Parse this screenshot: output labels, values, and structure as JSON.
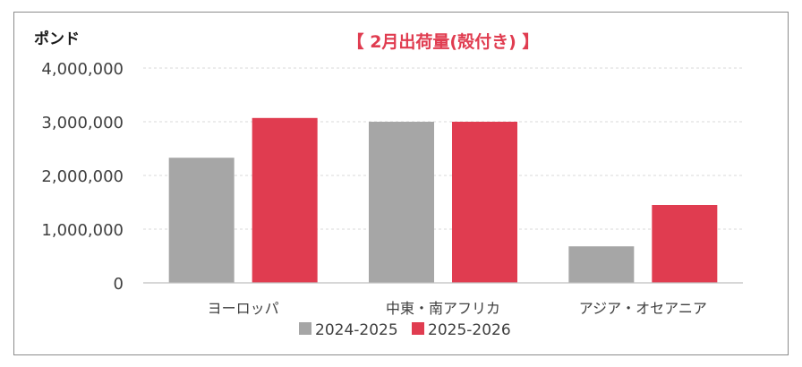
{
  "chart_data": {
    "type": "bar",
    "title": "【 2月出荷量(殻付き) 】",
    "ylabel": "ポンド",
    "xlabel": "",
    "categories": [
      "ヨーロッパ",
      "中東・南アフリカ",
      "アジア・オセアニア"
    ],
    "series": [
      {
        "name": "2024-2025",
        "color": "#a6a6a6",
        "values": [
          2330000,
          3000000,
          680000
        ]
      },
      {
        "name": "2025-2026",
        "color": "#e03c50",
        "values": [
          3070000,
          3000000,
          1450000
        ]
      }
    ],
    "ylim": [
      0,
      4000000
    ],
    "yticks": [
      "0",
      "1,000,000",
      "2,000,000",
      "3,000,000",
      "4,000,000"
    ],
    "ytick_values": [
      0,
      1000000,
      2000000,
      3000000,
      4000000
    ],
    "grid": true,
    "legend_position": "bottom",
    "title_color": "#e03c50"
  }
}
